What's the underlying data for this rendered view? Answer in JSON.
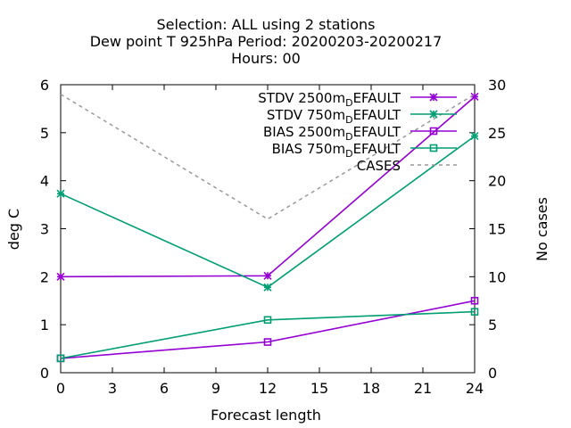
{
  "chart_data": {
    "type": "line",
    "title_lines": [
      "Selection: ALL using     2 stations",
      "Dew point T 925hPa   Period: 20200203-20200217",
      "Hours:  00"
    ],
    "xlabel": "Forecast length",
    "ylabel": "deg C",
    "y2label": "No cases",
    "xlim": [
      0,
      24
    ],
    "ylim": [
      0,
      6
    ],
    "y2lim": [
      0,
      30
    ],
    "xticks": [
      0,
      3,
      6,
      9,
      12,
      15,
      18,
      21,
      24
    ],
    "yticks": [
      0,
      1,
      2,
      3,
      4,
      5,
      6
    ],
    "y2ticks": [
      0,
      5,
      10,
      15,
      20,
      25,
      30
    ],
    "grid": false,
    "legend_position": "top-right",
    "series": [
      {
        "name": "STDV 2500m",
        "name_sub": "D",
        "name_suffix": "EFAULT",
        "axis": "y",
        "color": "#9400d3",
        "marker": "star",
        "dashed": false,
        "x": [
          0,
          12,
          24
        ],
        "y": [
          2.0,
          2.02,
          5.75
        ]
      },
      {
        "name": "STDV 750m",
        "name_sub": "D",
        "name_suffix": "EFAULT",
        "axis": "y",
        "color": "#009e73",
        "marker": "star",
        "dashed": false,
        "x": [
          0,
          12,
          24
        ],
        "y": [
          3.73,
          1.78,
          4.93
        ]
      },
      {
        "name": "BIAS 2500m",
        "name_sub": "D",
        "name_suffix": "EFAULT",
        "axis": "y",
        "color": "#9400d3",
        "marker": "square",
        "dashed": false,
        "x": [
          0,
          12,
          24
        ],
        "y": [
          0.3,
          0.64,
          1.5
        ]
      },
      {
        "name": "BIAS 750m",
        "name_sub": "D",
        "name_suffix": "EFAULT",
        "axis": "y",
        "color": "#009e73",
        "marker": "square",
        "dashed": false,
        "x": [
          0,
          12,
          24
        ],
        "y": [
          0.3,
          1.1,
          1.27
        ]
      },
      {
        "name": "CASES",
        "name_sub": "",
        "name_suffix": "",
        "axis": "y2",
        "color": "#999999",
        "marker": "none",
        "dashed": true,
        "x": [
          0,
          12,
          24
        ],
        "y": [
          29,
          16,
          29
        ]
      }
    ]
  }
}
